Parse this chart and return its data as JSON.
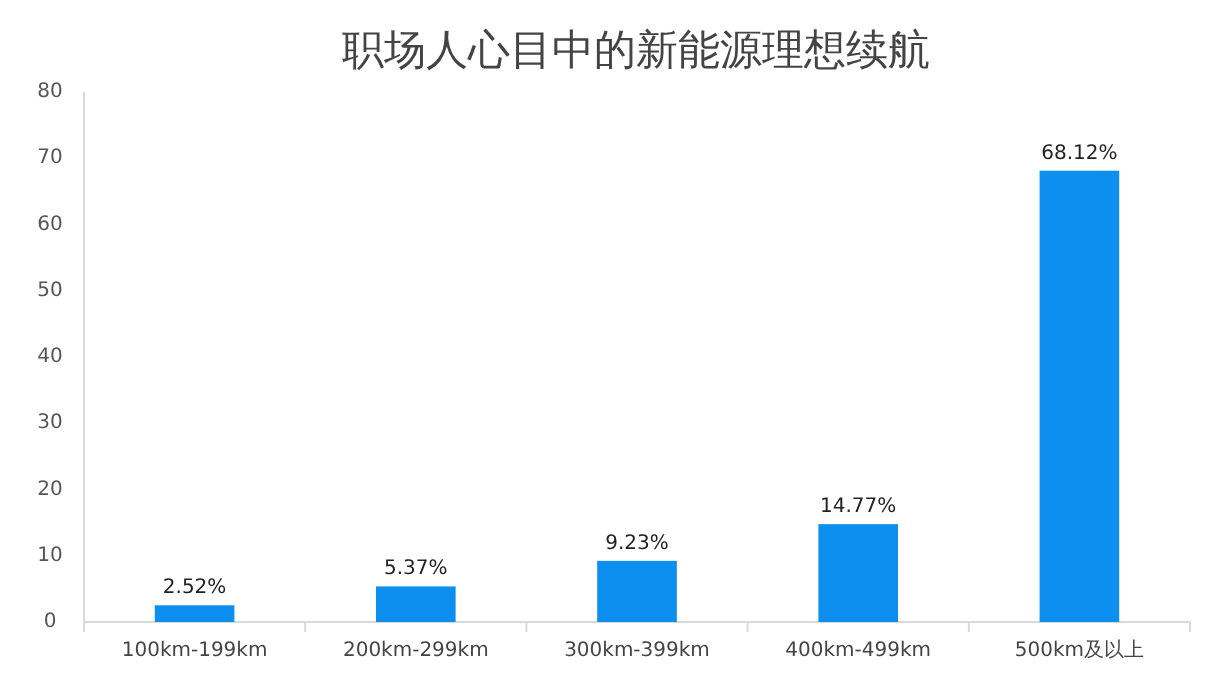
{
  "chart_data": {
    "type": "bar",
    "title": "职场人心目中的新能源理想续航",
    "categories": [
      "100km-199km",
      "200km-299km",
      "300km-399km",
      "400km-499km",
      "500km及以上"
    ],
    "values": [
      2.52,
      5.37,
      9.23,
      14.77,
      68.12
    ],
    "value_labels": [
      "2.52%",
      "5.37%",
      "9.23%",
      "14.77%",
      "68.12%"
    ],
    "color": "#0d8ff0",
    "ylim": [
      0,
      80
    ],
    "yticks": [
      0,
      10,
      20,
      30,
      40,
      50,
      60,
      70,
      80
    ]
  }
}
